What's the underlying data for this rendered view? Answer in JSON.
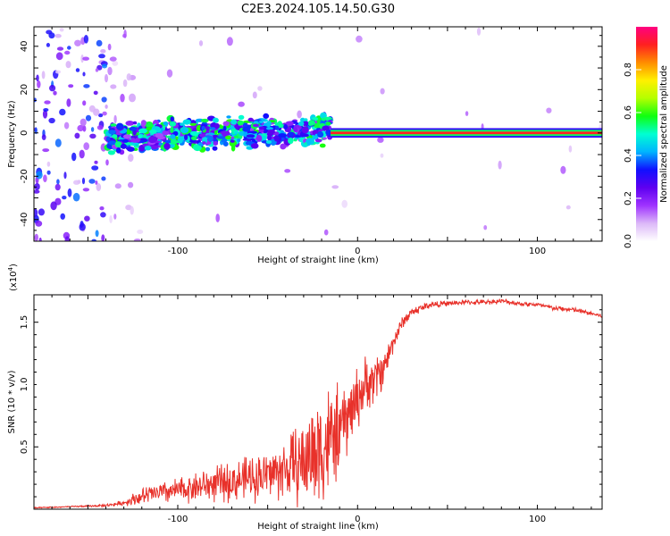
{
  "title": "C2E3.2024.105.14.50.G30",
  "chart_data": [
    {
      "type": "heatmap",
      "xlabel": "Height of straight line (km)",
      "ylabel": "Frequency (Hz)",
      "xlim": [
        -180,
        136
      ],
      "ylim": [
        -50,
        49
      ],
      "xticks": [
        -100,
        0,
        100
      ],
      "yticks": [
        -40,
        -20,
        0,
        20,
        40
      ],
      "colorbar": {
        "label": "Normalized spectral amplitude",
        "range": [
          0,
          1
        ],
        "ticks": [
          0.0,
          0.2,
          0.4,
          0.6,
          0.8
        ],
        "colors": [
          "#ffffff",
          "#dcb8f8",
          "#9f33ff",
          "#5e00f0",
          "#1010ff",
          "#00b4ff",
          "#00ffd2",
          "#10ff10",
          "#b4ff00",
          "#fff000",
          "#ff8c00",
          "#ff2020",
          "#ff0080"
        ]
      },
      "line_frequency_hz": 0,
      "regions": [
        {
          "x_range": [
            -180,
            -125
          ],
          "description_amplitude": 0.35
        },
        {
          "x_range": [
            -125,
            -15
          ],
          "description_amplitude": 0.5
        },
        {
          "x_range": [
            -15,
            136
          ],
          "description_amplitude": 0.9
        }
      ]
    },
    {
      "type": "line",
      "xlabel": "Height of straight line (km)",
      "ylabel": "SNR (10 * v/v)",
      "scale_label": "(x10",
      "scale_exp": "4",
      "scale_close": ")",
      "xlim": [
        -180,
        136
      ],
      "ylim": [
        0,
        1.72
      ],
      "xticks": [
        -100,
        0,
        100
      ],
      "yticks": [
        0.5,
        1.0,
        1.5
      ],
      "ytick_labels": [
        "0.5",
        "1.0",
        "1.5"
      ],
      "series": [
        {
          "color": "#e8312a",
          "x": [
            -180,
            -160,
            -140,
            -130,
            -125,
            -115,
            -100,
            -90,
            -80,
            -70,
            -60,
            -50,
            -40,
            -30,
            -25,
            -20,
            -15,
            -10,
            -5,
            0,
            5,
            10,
            15,
            20,
            25,
            30,
            40,
            50,
            60,
            70,
            80,
            90,
            100,
            110,
            120,
            130,
            136
          ],
          "values": [
            0.01,
            0.02,
            0.03,
            0.05,
            0.08,
            0.12,
            0.15,
            0.18,
            0.2,
            0.22,
            0.25,
            0.28,
            0.32,
            0.38,
            0.45,
            0.5,
            0.55,
            0.62,
            0.75,
            0.9,
            1.0,
            1.05,
            1.15,
            1.35,
            1.5,
            1.58,
            1.64,
            1.65,
            1.66,
            1.66,
            1.67,
            1.65,
            1.64,
            1.61,
            1.6,
            1.57,
            1.55
          ],
          "noise": [
            0.005,
            0.005,
            0.01,
            0.02,
            0.05,
            0.08,
            0.1,
            0.12,
            0.14,
            0.16,
            0.18,
            0.2,
            0.25,
            0.35,
            0.45,
            0.5,
            0.45,
            0.35,
            0.3,
            0.25,
            0.22,
            0.2,
            0.15,
            0.08,
            0.05,
            0.04,
            0.03,
            0.02,
            0.02,
            0.02,
            0.02,
            0.02,
            0.02,
            0.02,
            0.02,
            0.02,
            0.02
          ]
        }
      ]
    }
  ]
}
